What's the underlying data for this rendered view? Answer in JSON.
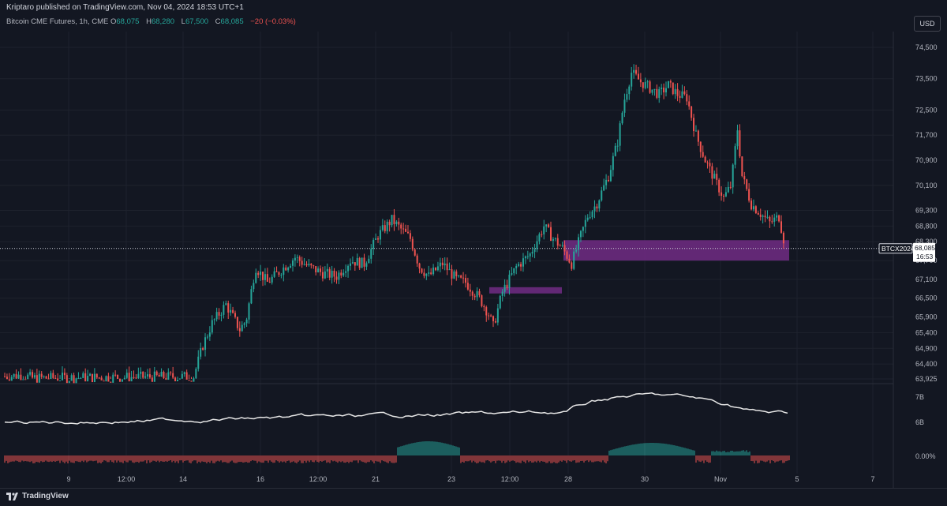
{
  "header": {
    "publish_line": "Kriptaro published on TradingView.com, Nov 04, 2024 18:53 UTC+1",
    "symbol": "Bitcoin CME Futures, 1h, CME",
    "ohlc": [
      {
        "label": "O",
        "value": "68,075"
      },
      {
        "label": "H",
        "value": "68,280"
      },
      {
        "label": "L",
        "value": "67,500"
      },
      {
        "label": "C",
        "value": "68,085"
      }
    ],
    "change": "−20 (−0.03%)",
    "currency_button": "USD"
  },
  "price_tag": {
    "ticker": "BTCX2024",
    "price": "68,085",
    "countdown": "16:53"
  },
  "footer": {
    "brand": "TradingView"
  },
  "colors": {
    "background": "#131722",
    "up": "#26a69a",
    "down": "#ef5350",
    "zone": "#6b2a7e",
    "grid": "#1e222d"
  },
  "chart_data": {
    "type": "candlestick",
    "interval": "1h",
    "price_ticks": [
      "74,500",
      "73,500",
      "72,500",
      "71,700",
      "70,900",
      "70,100",
      "69,300",
      "68,800",
      "68,300",
      "67,700",
      "67,100",
      "66,500",
      "65,900",
      "65,400",
      "64,900",
      "64,400",
      "63,925"
    ],
    "price_range": [
      63925,
      74500
    ],
    "time_ticks": [
      "9",
      "12:00",
      "14",
      "16",
      "12:00",
      "21",
      "23",
      "12:00",
      "28",
      "30",
      "Nov",
      "5",
      "7"
    ],
    "volume_ticks": [
      "7B",
      "6B"
    ],
    "oscillator_ticks": [
      "0.00%"
    ],
    "close_path": [
      [
        0.0,
        64000
      ],
      [
        0.02,
        64050
      ],
      [
        0.03,
        63950
      ],
      [
        0.205,
        64000
      ],
      [
        0.215,
        65000
      ],
      [
        0.225,
        65700
      ],
      [
        0.24,
        66300
      ],
      [
        0.255,
        65500
      ],
      [
        0.262,
        65800
      ],
      [
        0.272,
        67500
      ],
      [
        0.285,
        67000
      ],
      [
        0.3,
        67400
      ],
      [
        0.315,
        67800
      ],
      [
        0.33,
        67500
      ],
      [
        0.345,
        67300
      ],
      [
        0.36,
        67200
      ],
      [
        0.375,
        67700
      ],
      [
        0.39,
        67600
      ],
      [
        0.405,
        68500
      ],
      [
        0.42,
        69000
      ],
      [
        0.43,
        68700
      ],
      [
        0.44,
        68400
      ],
      [
        0.45,
        67500
      ],
      [
        0.46,
        67200
      ],
      [
        0.475,
        67600
      ],
      [
        0.49,
        67100
      ],
      [
        0.5,
        67000
      ],
      [
        0.515,
        66500
      ],
      [
        0.525,
        66000
      ],
      [
        0.53,
        65600
      ],
      [
        0.54,
        66700
      ],
      [
        0.555,
        67500
      ],
      [
        0.57,
        67900
      ],
      [
        0.585,
        68800
      ],
      [
        0.595,
        68400
      ],
      [
        0.605,
        68100
      ],
      [
        0.615,
        67600
      ],
      [
        0.625,
        68500
      ],
      [
        0.632,
        69100
      ],
      [
        0.642,
        69500
      ],
      [
        0.655,
        70400
      ],
      [
        0.665,
        71500
      ],
      [
        0.672,
        72800
      ],
      [
        0.68,
        73700
      ],
      [
        0.69,
        73400
      ],
      [
        0.7,
        73200
      ],
      [
        0.71,
        73000
      ],
      [
        0.72,
        73300
      ],
      [
        0.73,
        73000
      ],
      [
        0.74,
        72900
      ],
      [
        0.75,
        71700
      ],
      [
        0.76,
        70900
      ],
      [
        0.77,
        70300
      ],
      [
        0.78,
        69700
      ],
      [
        0.788,
        70100
      ],
      [
        0.795,
        71900
      ],
      [
        0.8,
        70400
      ],
      [
        0.81,
        69500
      ],
      [
        0.82,
        69200
      ],
      [
        0.83,
        68900
      ],
      [
        0.84,
        69100
      ],
      [
        0.847,
        68100
      ]
    ],
    "zones": [
      {
        "name": "upper",
        "price_top": 68350,
        "price_bottom": 67700
      },
      {
        "name": "lower",
        "price_top": 66850,
        "price_bottom": 66650
      }
    ],
    "current_price": 68085,
    "grid": true
  }
}
